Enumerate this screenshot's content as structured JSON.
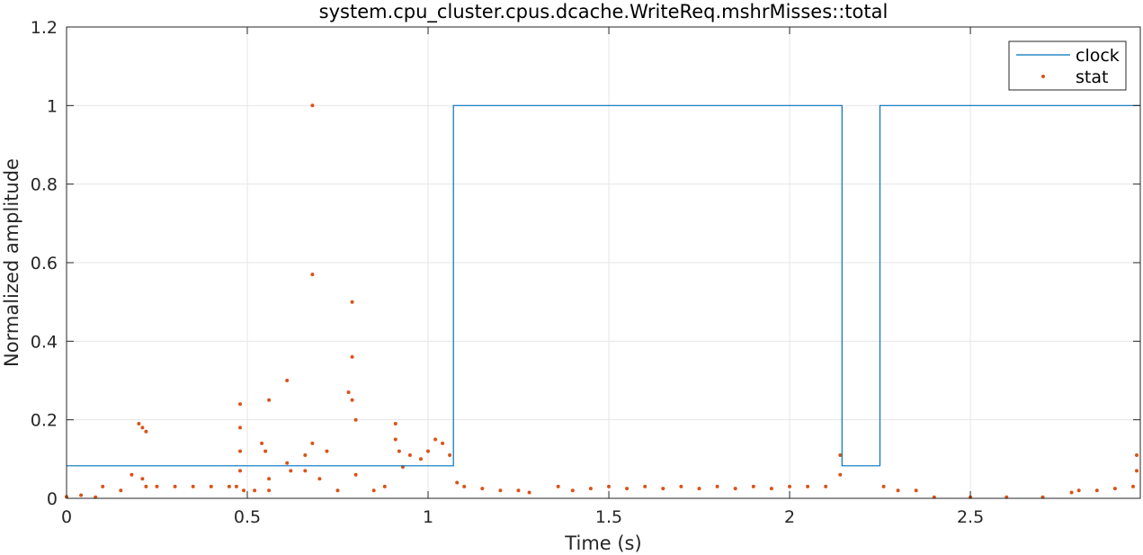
{
  "chart_data": {
    "type": "line",
    "title": "system.cpu_cluster.cpus.dcache.WriteReq.mshrMisses::total",
    "xlabel": "Time (s)",
    "ylabel": "Normalized amplitude",
    "xlim": [
      0,
      2.97
    ],
    "ylim": [
      0,
      1.2
    ],
    "xticks": [
      0,
      0.5,
      1,
      1.5,
      2,
      2.5
    ],
    "xtick_labels": [
      "0",
      "0.5",
      "1",
      "1.5",
      "2",
      "2.5"
    ],
    "yticks": [
      0,
      0.2,
      0.4,
      0.6,
      0.8,
      1,
      1.2
    ],
    "ytick_labels": [
      "0",
      "0.2",
      "0.4",
      "0.6",
      "0.8",
      "1",
      "1.2"
    ],
    "grid": true,
    "legend_position": "top-right",
    "colors": {
      "clock": "#0072BD",
      "stat": "#D95319",
      "grid": "#e6e6e6",
      "axis": "#262626"
    },
    "series": [
      {
        "name": "clock",
        "style": "step-line",
        "points": [
          [
            0,
            0.083
          ],
          [
            1.07,
            0.083
          ],
          [
            1.07,
            1
          ],
          [
            2.145,
            1
          ],
          [
            2.145,
            0.083
          ],
          [
            2.25,
            0.083
          ],
          [
            2.25,
            1
          ],
          [
            2.97,
            1
          ]
        ]
      },
      {
        "name": "stat",
        "style": "markers",
        "points": [
          [
            0.0,
            0.004
          ],
          [
            0.04,
            0.008
          ],
          [
            0.08,
            0.003
          ],
          [
            0.1,
            0.03
          ],
          [
            0.15,
            0.02
          ],
          [
            0.18,
            0.06
          ],
          [
            0.2,
            0.19
          ],
          [
            0.21,
            0.18
          ],
          [
            0.22,
            0.17
          ],
          [
            0.21,
            0.05
          ],
          [
            0.22,
            0.03
          ],
          [
            0.25,
            0.03
          ],
          [
            0.3,
            0.03
          ],
          [
            0.35,
            0.03
          ],
          [
            0.4,
            0.03
          ],
          [
            0.45,
            0.03
          ],
          [
            0.47,
            0.03
          ],
          [
            0.48,
            0.24
          ],
          [
            0.48,
            0.18
          ],
          [
            0.48,
            0.12
          ],
          [
            0.48,
            0.07
          ],
          [
            0.49,
            0.02
          ],
          [
            0.52,
            0.02
          ],
          [
            0.54,
            0.14
          ],
          [
            0.55,
            0.12
          ],
          [
            0.56,
            0.25
          ],
          [
            0.56,
            0.05
          ],
          [
            0.56,
            0.02
          ],
          [
            0.61,
            0.3
          ],
          [
            0.61,
            0.09
          ],
          [
            0.62,
            0.07
          ],
          [
            0.66,
            0.11
          ],
          [
            0.66,
            0.07
          ],
          [
            0.68,
            1.0
          ],
          [
            0.68,
            0.57
          ],
          [
            0.68,
            0.14
          ],
          [
            0.7,
            0.05
          ],
          [
            0.72,
            0.12
          ],
          [
            0.75,
            0.02
          ],
          [
            0.78,
            0.27
          ],
          [
            0.79,
            0.5
          ],
          [
            0.79,
            0.36
          ],
          [
            0.79,
            0.25
          ],
          [
            0.8,
            0.2
          ],
          [
            0.8,
            0.06
          ],
          [
            0.85,
            0.02
          ],
          [
            0.88,
            0.03
          ],
          [
            0.91,
            0.19
          ],
          [
            0.91,
            0.15
          ],
          [
            0.92,
            0.12
          ],
          [
            0.93,
            0.08
          ],
          [
            0.95,
            0.11
          ],
          [
            0.98,
            0.1
          ],
          [
            1.0,
            0.12
          ],
          [
            1.02,
            0.15
          ],
          [
            1.04,
            0.14
          ],
          [
            1.06,
            0.11
          ],
          [
            1.08,
            0.04
          ],
          [
            1.1,
            0.03
          ],
          [
            1.15,
            0.025
          ],
          [
            1.2,
            0.02
          ],
          [
            1.25,
            0.02
          ],
          [
            1.28,
            0.015
          ],
          [
            1.36,
            0.03
          ],
          [
            1.4,
            0.02
          ],
          [
            1.45,
            0.025
          ],
          [
            1.5,
            0.03
          ],
          [
            1.55,
            0.025
          ],
          [
            1.6,
            0.03
          ],
          [
            1.65,
            0.025
          ],
          [
            1.7,
            0.03
          ],
          [
            1.75,
            0.025
          ],
          [
            1.8,
            0.03
          ],
          [
            1.85,
            0.025
          ],
          [
            1.9,
            0.03
          ],
          [
            1.95,
            0.025
          ],
          [
            2.0,
            0.03
          ],
          [
            2.05,
            0.03
          ],
          [
            2.1,
            0.03
          ],
          [
            2.14,
            0.11
          ],
          [
            2.14,
            0.06
          ],
          [
            2.26,
            0.03
          ],
          [
            2.3,
            0.02
          ],
          [
            2.35,
            0.02
          ],
          [
            2.4,
            0.003
          ],
          [
            2.5,
            0.003
          ],
          [
            2.6,
            0.003
          ],
          [
            2.7,
            0.003
          ],
          [
            2.78,
            0.015
          ],
          [
            2.8,
            0.02
          ],
          [
            2.85,
            0.02
          ],
          [
            2.9,
            0.025
          ],
          [
            2.95,
            0.03
          ],
          [
            2.96,
            0.11
          ],
          [
            2.96,
            0.07
          ]
        ]
      }
    ]
  }
}
